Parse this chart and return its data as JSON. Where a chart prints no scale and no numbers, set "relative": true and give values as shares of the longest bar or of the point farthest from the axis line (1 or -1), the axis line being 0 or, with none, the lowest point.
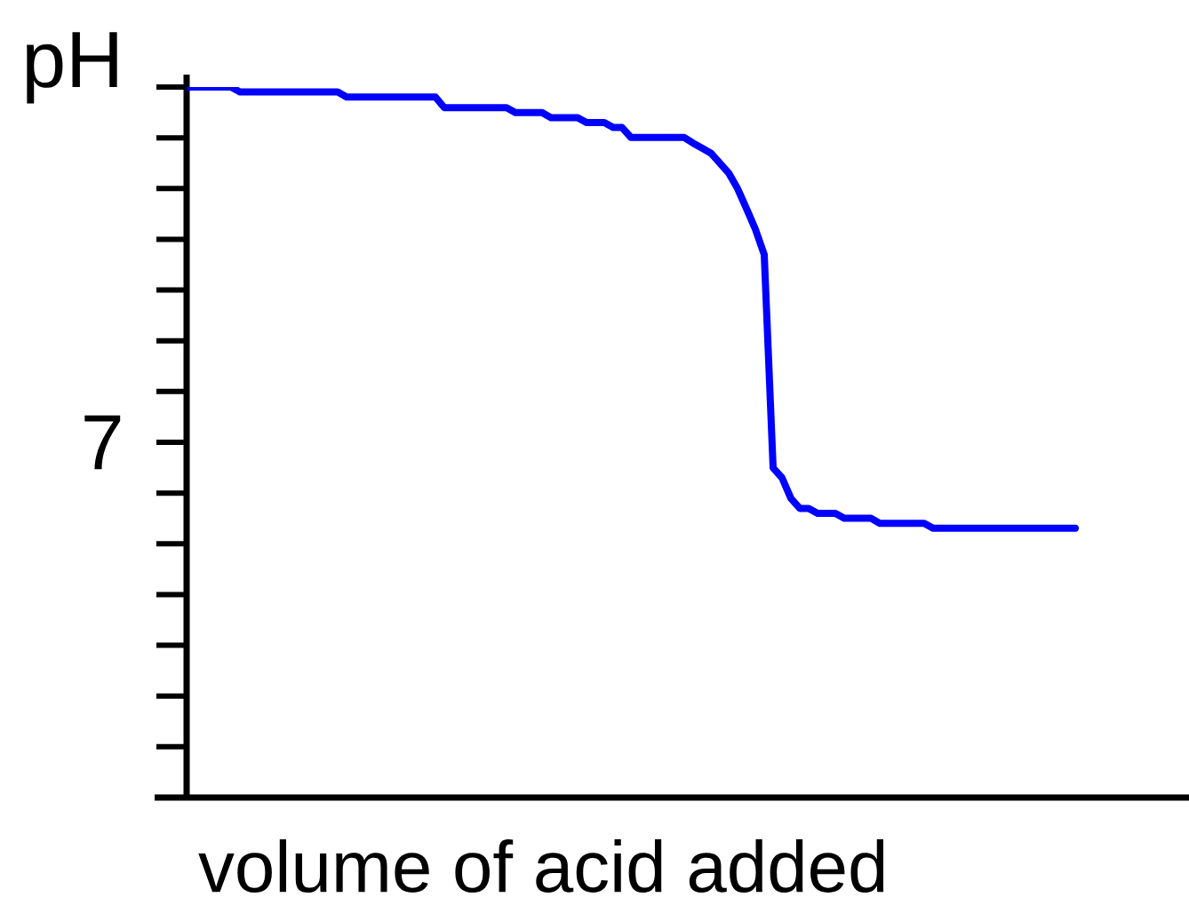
{
  "chart_data": {
    "type": "line",
    "xlabel": "volume of acid added",
    "ylabel": "pH",
    "relative": true,
    "annotations": [
      "7"
    ],
    "categories": [
      null,
      null,
      null,
      null,
      null,
      null,
      null,
      null,
      null,
      null,
      null,
      null,
      null,
      null,
      null,
      null,
      null,
      null,
      null,
      null,
      null,
      null,
      null,
      null,
      null,
      null,
      null,
      null,
      null,
      null,
      null,
      null,
      null,
      null,
      null,
      null,
      null,
      null,
      null,
      null,
      null,
      null,
      null,
      null,
      null,
      null,
      null,
      null,
      null,
      null,
      null,
      null,
      null,
      null,
      null,
      null,
      null,
      null,
      null,
      null,
      null,
      null,
      null,
      null,
      null,
      null,
      null,
      null,
      null,
      null,
      null,
      null,
      null,
      null,
      null,
      null,
      null,
      null,
      null,
      null,
      null,
      null,
      null,
      null,
      null,
      null,
      null,
      null,
      null,
      null,
      null,
      null,
      null,
      null,
      null,
      null,
      null,
      null,
      null,
      null,
      null
    ],
    "series": [
      {
        "color": "#0000ff",
        "values": [
          1.0,
          1.0,
          1.0,
          1.0,
          1.0,
          1.0,
          0.993,
          0.993,
          0.993,
          0.993,
          0.993,
          0.993,
          0.993,
          0.993,
          0.993,
          0.993,
          0.993,
          0.993,
          0.986,
          0.986,
          0.986,
          0.986,
          0.986,
          0.986,
          0.986,
          0.986,
          0.986,
          0.986,
          0.986,
          0.971,
          0.971,
          0.971,
          0.971,
          0.971,
          0.971,
          0.971,
          0.971,
          0.964,
          0.964,
          0.964,
          0.964,
          0.957,
          0.957,
          0.957,
          0.957,
          0.95,
          0.95,
          0.95,
          0.943,
          0.943,
          0.929,
          0.929,
          0.929,
          0.929,
          0.929,
          0.929,
          0.929,
          0.921,
          0.914,
          0.907,
          0.893,
          0.879,
          0.857,
          0.829,
          0.8,
          0.764,
          0.464,
          0.45,
          0.421,
          0.407,
          0.407,
          0.4,
          0.4,
          0.4,
          0.393,
          0.393,
          0.393,
          0.393,
          0.386,
          0.386,
          0.386,
          0.386,
          0.386,
          0.386,
          0.379,
          0.379,
          0.379,
          0.379,
          0.379,
          0.379,
          0.379,
          0.379,
          0.379,
          0.379,
          0.379,
          0.379,
          0.379,
          0.379,
          0.379,
          0.379,
          0.379
        ]
      }
    ]
  }
}
